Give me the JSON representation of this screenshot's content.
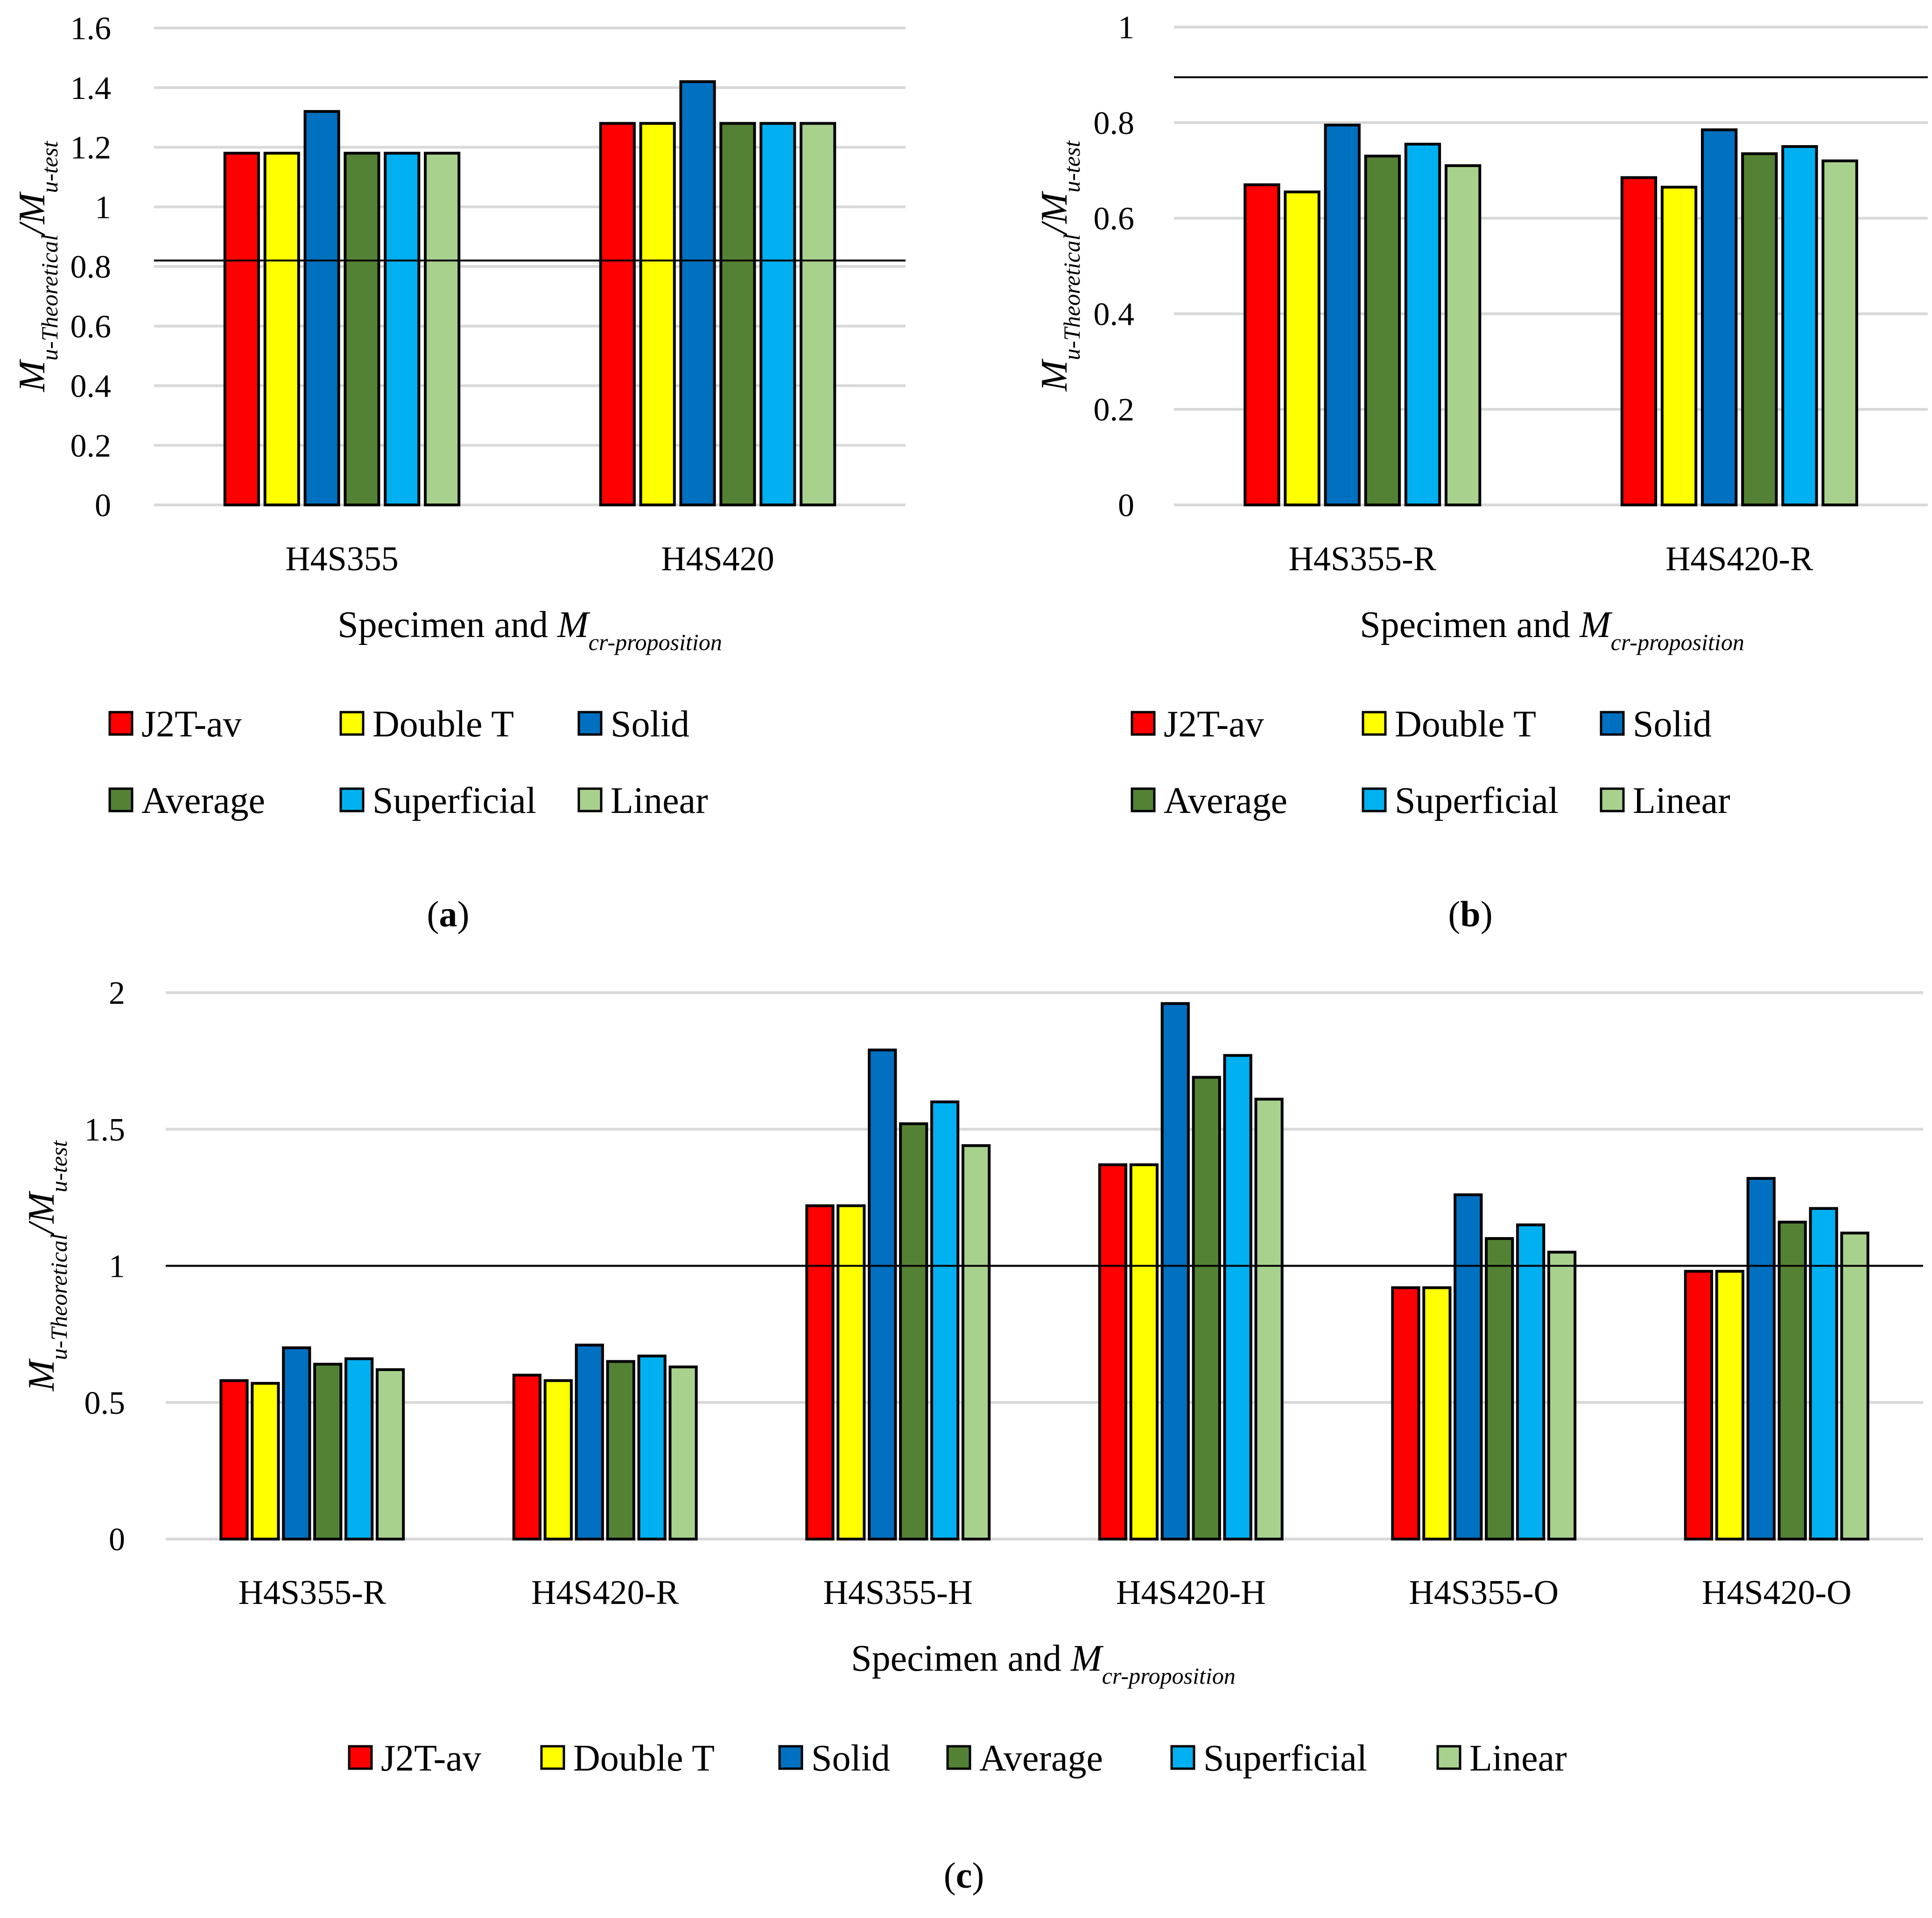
{
  "colors": {
    "J2T-av": "#ff0000",
    "Double T": "#ffff00",
    "Solid": "#0070c0",
    "Average": "#548235",
    "Superficial": "#00b0f0",
    "Linear": "#a9d18e"
  },
  "chart_data": [
    {
      "id": "a",
      "type": "bar",
      "caption": "(a)",
      "caption_parts": [
        "(",
        "a",
        ")"
      ],
      "xlabel_main": "Specimen and M",
      "xlabel_sub": "cr-proposition",
      "ylabel_m1": "M",
      "ylabel_sub1": "u-Theoretical",
      "ylabel_mid": "/M",
      "ylabel_sub2": "u-test",
      "ylim": [
        0,
        1.6
      ],
      "yticks": [
        0,
        0.2,
        0.4,
        0.6,
        0.8,
        1,
        1.2,
        1.4,
        1.6
      ],
      "yticks_labels": [
        "0",
        "0.2",
        "0.4",
        "0.6",
        "0.8",
        "1",
        "1.2",
        "1.4",
        "1.6"
      ],
      "reference_line": 0.82,
      "categories": [
        "H4S355",
        "H4S420"
      ],
      "series": [
        {
          "name": "J2T-av",
          "values": [
            1.18,
            1.28
          ]
        },
        {
          "name": "Double T",
          "values": [
            1.18,
            1.28
          ]
        },
        {
          "name": "Solid",
          "values": [
            1.32,
            1.42
          ]
        },
        {
          "name": "Average",
          "values": [
            1.18,
            1.28
          ]
        },
        {
          "name": "Superficial",
          "values": [
            1.18,
            1.28
          ]
        },
        {
          "name": "Linear",
          "values": [
            1.18,
            1.28
          ]
        }
      ],
      "legend": [
        "J2T-av",
        "Double T",
        "Solid",
        "Average",
        "Superficial",
        "Linear"
      ]
    },
    {
      "id": "b",
      "type": "bar",
      "caption": "(b)",
      "caption_parts": [
        "(",
        "b",
        ")"
      ],
      "xlabel_main": "Specimen and M",
      "xlabel_sub": "cr-proposition",
      "ylabel_m1": "M",
      "ylabel_sub1": "u-Theoretical",
      "ylabel_mid": "/M",
      "ylabel_sub2": "u-test",
      "ylim": [
        0,
        1
      ],
      "yticks": [
        0,
        0.2,
        0.4,
        0.6,
        0.8,
        1
      ],
      "yticks_labels": [
        "0",
        "0.2",
        "0.4",
        "0.6",
        "0.8",
        "1"
      ],
      "reference_line": 0.895,
      "categories": [
        "H4S355-R",
        "H4S420-R"
      ],
      "series": [
        {
          "name": "J2T-av",
          "values": [
            0.67,
            0.685
          ]
        },
        {
          "name": "Double T",
          "values": [
            0.655,
            0.665
          ]
        },
        {
          "name": "Solid",
          "values": [
            0.795,
            0.785
          ]
        },
        {
          "name": "Average",
          "values": [
            0.73,
            0.735
          ]
        },
        {
          "name": "Superficial",
          "values": [
            0.755,
            0.75
          ]
        },
        {
          "name": "Linear",
          "values": [
            0.71,
            0.72
          ]
        }
      ],
      "legend": [
        "J2T-av",
        "Double T",
        "Solid",
        "Average",
        "Superficial",
        "Linear"
      ]
    },
    {
      "id": "c",
      "type": "bar",
      "caption": "(c)",
      "caption_parts": [
        "(",
        "c",
        ")"
      ],
      "xlabel_main": "Specimen and M",
      "xlabel_sub": "cr-proposition",
      "ylabel_m1": "M",
      "ylabel_sub1": "u-Theoretical",
      "ylabel_mid": "/M",
      "ylabel_sub2": "u-test",
      "ylim": [
        0,
        2
      ],
      "yticks": [
        0,
        0.5,
        1,
        1.5,
        2
      ],
      "yticks_labels": [
        "0",
        "0.5",
        "1",
        "1.5",
        "2"
      ],
      "reference_line": 1.0,
      "categories": [
        "H4S355-R",
        "H4S420-R",
        "H4S355-H",
        "H4S420-H",
        "H4S355-O",
        "H4S420-O"
      ],
      "series": [
        {
          "name": "J2T-av",
          "values": [
            0.58,
            0.6,
            1.22,
            1.37,
            0.92,
            0.98
          ]
        },
        {
          "name": "Double T",
          "values": [
            0.57,
            0.58,
            1.22,
            1.37,
            0.92,
            0.98
          ]
        },
        {
          "name": "Solid",
          "values": [
            0.7,
            0.71,
            1.79,
            1.96,
            1.26,
            1.32
          ]
        },
        {
          "name": "Average",
          "values": [
            0.64,
            0.65,
            1.52,
            1.69,
            1.1,
            1.16
          ]
        },
        {
          "name": "Superficial",
          "values": [
            0.66,
            0.67,
            1.6,
            1.77,
            1.15,
            1.21
          ]
        },
        {
          "name": "Linear",
          "values": [
            0.62,
            0.63,
            1.44,
            1.61,
            1.05,
            1.12
          ]
        }
      ],
      "legend": [
        "J2T-av",
        "Double T",
        "Solid",
        "Average",
        "Superficial",
        "Linear"
      ]
    }
  ]
}
